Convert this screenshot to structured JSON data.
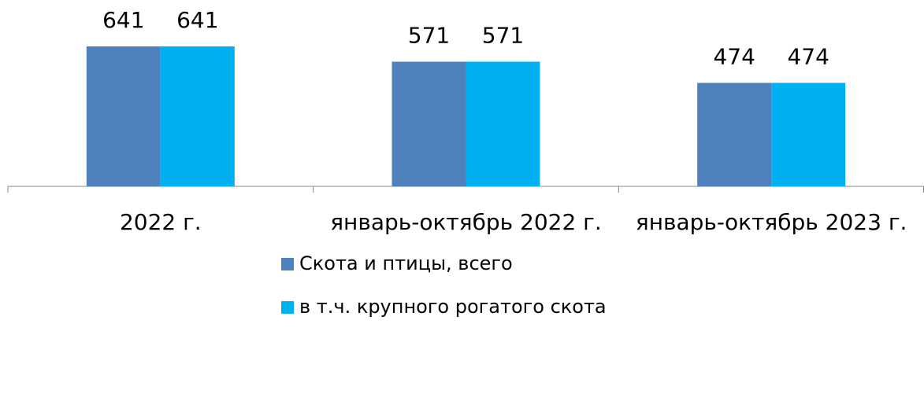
{
  "chart_data": {
    "type": "bar",
    "categories": [
      "2022 г.",
      "январь-октябрь 2022 г.",
      "январь-октябрь 2023 г."
    ],
    "series": [
      {
        "name": "Скота и птицы, всего",
        "color": "#4f81bd",
        "values": [
          641,
          571,
          474
        ]
      },
      {
        "name": "в т.ч. крупного рогатого скота",
        "color": "#00b0f0",
        "values": [
          641,
          571,
          474
        ]
      }
    ]
  }
}
